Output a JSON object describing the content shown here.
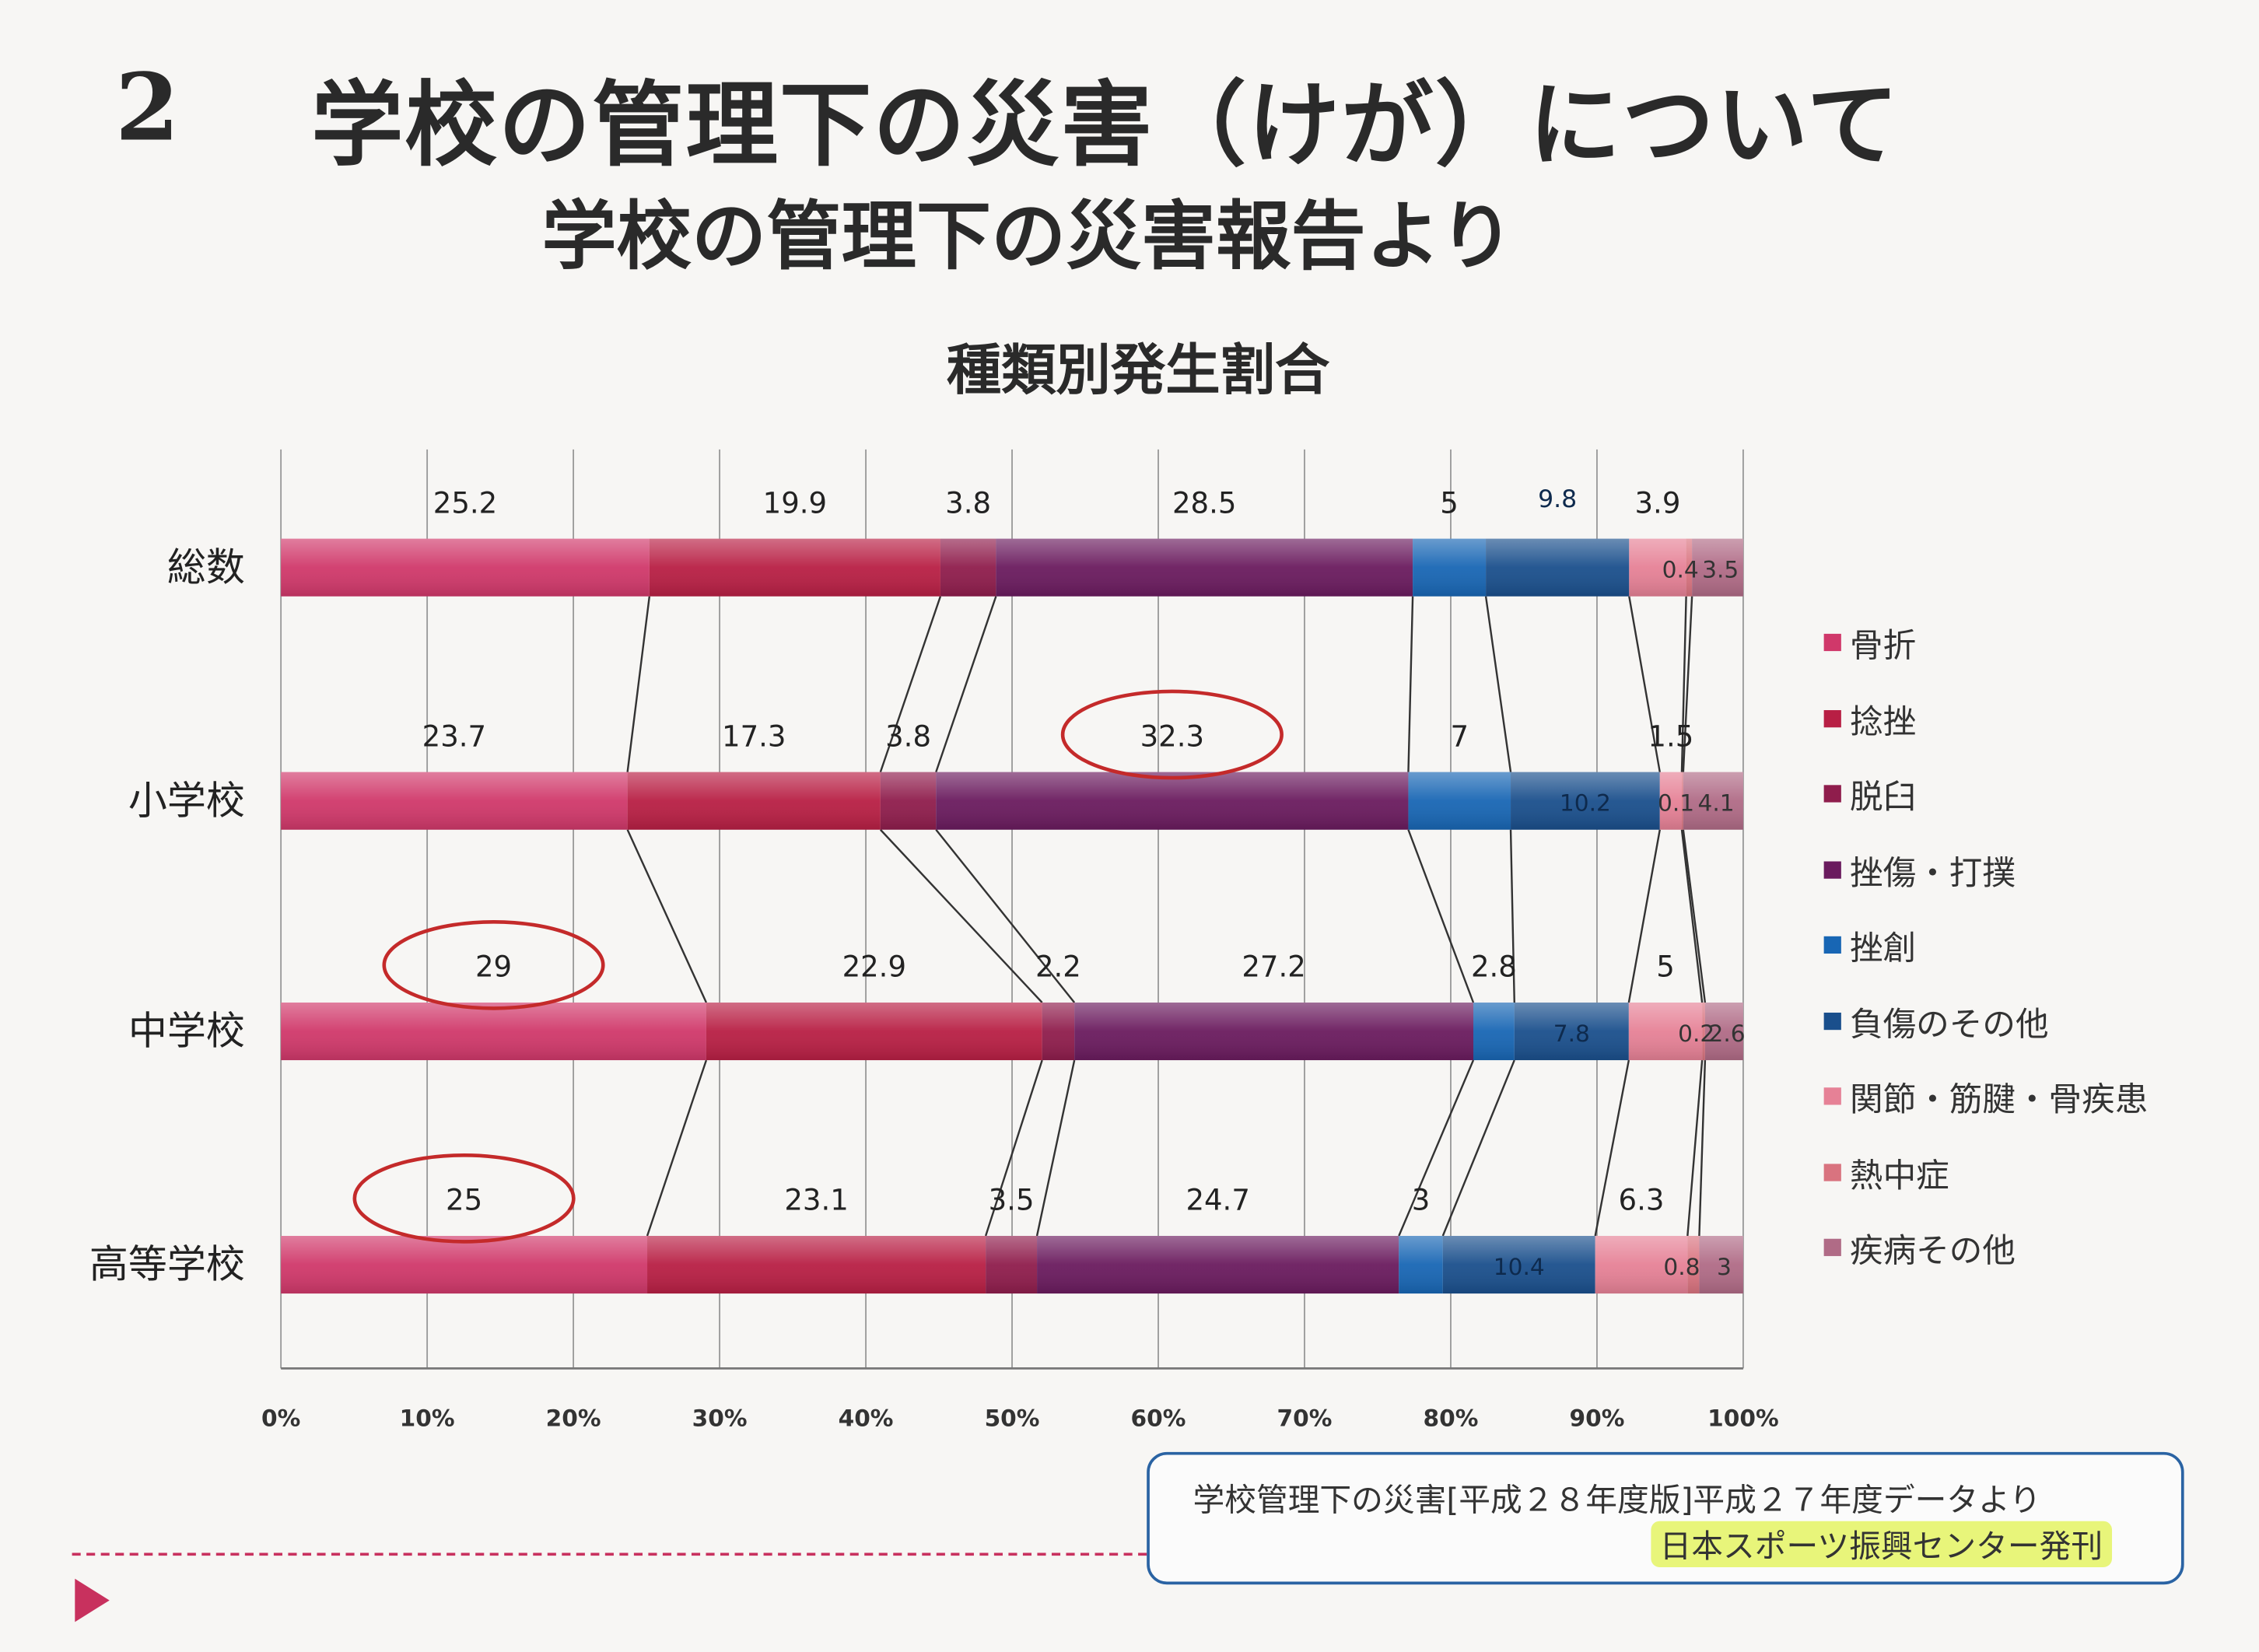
{
  "page": {
    "number": "2",
    "title": "学校の管理下の災害（けが）について",
    "subtitle": "学校の管理下の災害報告より",
    "source_line1": "学校管理下の災害[平成２８年度版]平成２７年度データより",
    "source_line2": "日本スポーツ振興センター発刊"
  },
  "chart_data": {
    "type": "bar",
    "orientation": "horizontal",
    "stacked": "percent",
    "title": "種類別発生割合",
    "xlabel": "",
    "ylabel": "",
    "xlim": [
      0,
      100
    ],
    "x_ticks": [
      "0%",
      "10%",
      "20%",
      "30%",
      "40%",
      "50%",
      "60%",
      "70%",
      "80%",
      "90%",
      "100%"
    ],
    "grid": true,
    "legend_position": "right",
    "categories": [
      "総数",
      "小学校",
      "中学校",
      "高等学校"
    ],
    "series": [
      {
        "name": "骨折",
        "color": "#d0386a",
        "values": [
          25.2,
          23.7,
          29,
          25
        ]
      },
      {
        "name": "捻挫",
        "color": "#b81f44",
        "values": [
          19.9,
          17.3,
          22.9,
          23.1
        ]
      },
      {
        "name": "脱臼",
        "color": "#8f1d4c",
        "values": [
          3.8,
          3.8,
          2.2,
          3.5
        ]
      },
      {
        "name": "挫傷・打撲",
        "color": "#6a1b5e",
        "values": [
          28.5,
          32.3,
          27.2,
          24.7
        ]
      },
      {
        "name": "挫創",
        "color": "#1866b4",
        "values": [
          5,
          7,
          2.8,
          3
        ]
      },
      {
        "name": "負傷のその他",
        "color": "#1a4f8c",
        "values": [
          9.8,
          10.2,
          7.8,
          10.4
        ]
      },
      {
        "name": "関節・筋腱・骨疾患",
        "color": "#e68196",
        "values": [
          3.9,
          1.5,
          5,
          6.3
        ]
      },
      {
        "name": "熱中症",
        "color": "#d9737f",
        "values": [
          0.4,
          0.1,
          0.2,
          0.8
        ]
      },
      {
        "name": "疾病その他",
        "color": "#b06b86",
        "values": [
          3.5,
          4.1,
          2.6,
          3
        ]
      }
    ],
    "data_labels": [
      [
        "25.2",
        "19.9",
        "3.8",
        "28.5",
        "5",
        "9.8",
        "3.9",
        "0.4",
        "3.5"
      ],
      [
        "23.7",
        "17.3",
        "3.8",
        "32.3",
        "7",
        "10.2",
        "1.5",
        "0.1",
        "4.1"
      ],
      [
        "29",
        "22.9",
        "2.2",
        "27.2",
        "2.8",
        "7.8",
        "5",
        "0.2",
        "2.6"
      ],
      [
        "25",
        "23.1",
        "3.5",
        "24.7",
        "3",
        "10.4",
        "6.3",
        "0.8",
        "3"
      ]
    ],
    "annotations": [
      {
        "type": "circle",
        "category": "小学校",
        "series": "挫傷・打撲",
        "color": "#c42a2a"
      },
      {
        "type": "circle",
        "category": "中学校",
        "series": "骨折",
        "color": "#c42a2a"
      },
      {
        "type": "circle",
        "category": "高等学校",
        "series": "骨折",
        "color": "#c42a2a"
      }
    ]
  }
}
